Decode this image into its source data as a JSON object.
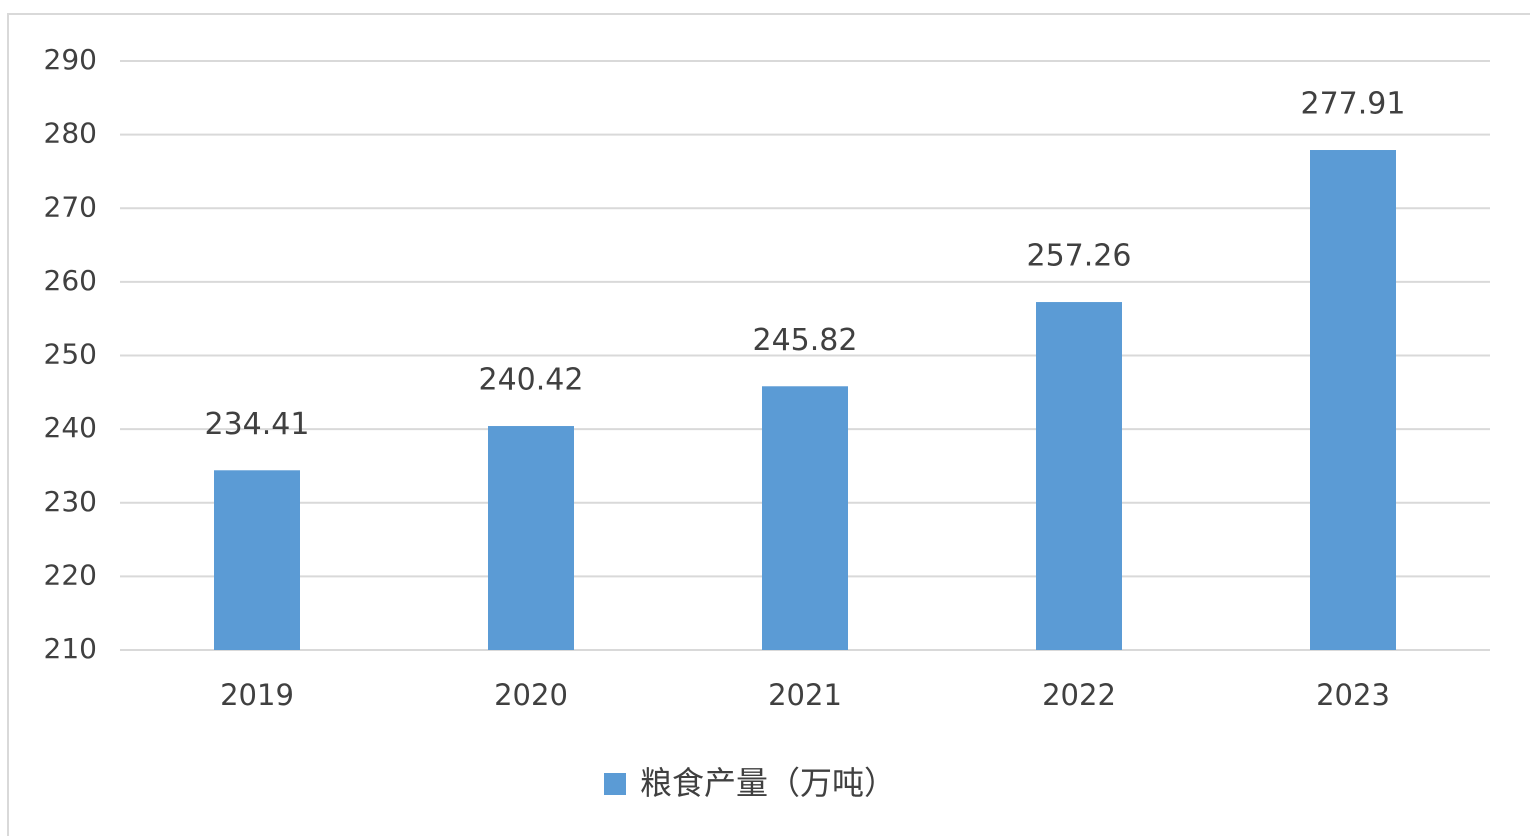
{
  "chart_data": {
    "type": "bar",
    "categories": [
      "2019",
      "2020",
      "2021",
      "2022",
      "2023"
    ],
    "series": [
      {
        "name": "粮食产量（万吨）",
        "color": "#5b9bd5",
        "values": [
          234.41,
          240.42,
          245.82,
          257.26,
          277.91
        ]
      }
    ],
    "ylim": [
      210,
      290
    ],
    "yticks": [
      210,
      220,
      230,
      240,
      250,
      260,
      270,
      280,
      290
    ],
    "grid": true,
    "data_labels": true,
    "legend": "bottom"
  }
}
